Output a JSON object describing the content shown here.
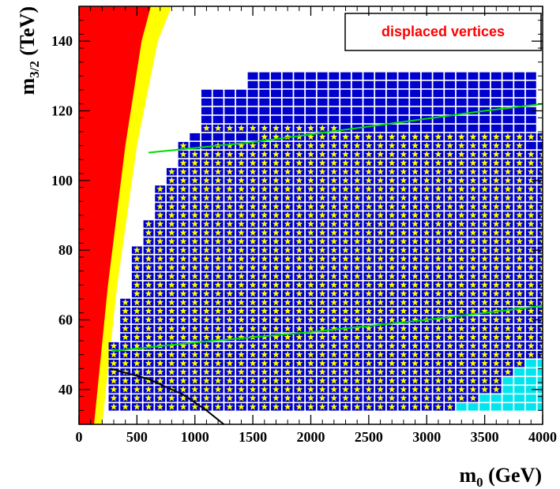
{
  "chart_data": {
    "type": "scatter",
    "title": "",
    "xlabel": {
      "main": "m",
      "sub": "0",
      "unit": " (GeV)"
    },
    "ylabel": {
      "main": "m",
      "sub": "3/2",
      "unit": " (TeV)"
    },
    "xlim": [
      0,
      4000
    ],
    "ylim": [
      30,
      150
    ],
    "x_ticks": [
      0,
      500,
      1000,
      1500,
      2000,
      2500,
      3000,
      3500,
      4000
    ],
    "y_ticks": [
      40,
      60,
      80,
      100,
      120,
      140
    ],
    "grid": false,
    "legend": {
      "text": "displaced vertices",
      "placement": "top-right",
      "color": "#ff0000"
    },
    "colors": {
      "excluded": "#ff0000",
      "boundary": "#ffff00",
      "blue_square": "#0000cc",
      "star": "#ffff00",
      "cyan_square": "#00e5ee",
      "green_contour": "#00dd00",
      "black_contour": "#000000"
    },
    "grid_spacing": {
      "dx": 100,
      "dy": 2.5
    },
    "rows": [
      {
        "y": 35.0,
        "xmin": 300,
        "xmax": 4000,
        "star_max": 3200,
        "cyan_min": 3300
      },
      {
        "y": 37.5,
        "xmin": 300,
        "xmax": 4000,
        "star_max": 3400,
        "cyan_min": 3500
      },
      {
        "y": 40.0,
        "xmin": 300,
        "xmax": 4000,
        "star_max": 3600,
        "cyan_min": 3700
      },
      {
        "y": 42.5,
        "xmin": 300,
        "xmax": 4000,
        "star_max": 3600,
        "cyan_min": 3700
      },
      {
        "y": 45.0,
        "xmin": 300,
        "xmax": 4000,
        "star_max": 3700,
        "cyan_min": 3800
      },
      {
        "y": 47.5,
        "xmin": 300,
        "xmax": 4000,
        "star_max": 3800,
        "cyan_min": 3900
      },
      {
        "y": 50.0,
        "xmin": 300,
        "xmax": 4000,
        "star_max": 4000
      },
      {
        "y": 52.5,
        "xmin": 300,
        "xmax": 4000,
        "star_max": 4000
      },
      {
        "y": 55.0,
        "xmin": 400,
        "xmax": 4000,
        "star_max": 4000
      },
      {
        "y": 57.5,
        "xmin": 400,
        "xmax": 4000,
        "star_max": 4000
      },
      {
        "y": 60.0,
        "xmin": 400,
        "xmax": 4000,
        "star_max": 4000
      },
      {
        "y": 62.5,
        "xmin": 400,
        "xmax": 4000,
        "star_max": 4000
      },
      {
        "y": 65.0,
        "xmin": 400,
        "xmax": 4000,
        "star_max": 4000
      },
      {
        "y": 67.5,
        "xmin": 500,
        "xmax": 4000,
        "star_max": 4000
      },
      {
        "y": 70.0,
        "xmin": 500,
        "xmax": 4000,
        "star_max": 4000
      },
      {
        "y": 72.5,
        "xmin": 500,
        "xmax": 4000,
        "star_max": 4000
      },
      {
        "y": 75.0,
        "xmin": 500,
        "xmax": 4000,
        "star_max": 4000
      },
      {
        "y": 77.5,
        "xmin": 500,
        "xmax": 4000,
        "star_max": 4000
      },
      {
        "y": 80.0,
        "xmin": 500,
        "xmax": 4000,
        "star_max": 4000
      },
      {
        "y": 82.5,
        "xmin": 600,
        "xmax": 4000,
        "star_max": 4000
      },
      {
        "y": 85.0,
        "xmin": 600,
        "xmax": 4000,
        "star_max": 4000
      },
      {
        "y": 87.5,
        "xmin": 600,
        "xmax": 4000,
        "star_max": 4000
      },
      {
        "y": 90.0,
        "xmin": 700,
        "xmax": 4000,
        "star_max": 4000
      },
      {
        "y": 92.5,
        "xmin": 700,
        "xmax": 4000,
        "star_max": 4000
      },
      {
        "y": 95.0,
        "xmin": 700,
        "xmax": 4000,
        "star_max": 4000
      },
      {
        "y": 97.5,
        "xmin": 700,
        "xmax": 4000,
        "star_max": 4000
      },
      {
        "y": 100.0,
        "xmin": 800,
        "xmax": 4000,
        "star_max": 4000
      },
      {
        "y": 102.5,
        "xmin": 800,
        "xmax": 4000,
        "star_max": 4000
      },
      {
        "y": 105.0,
        "xmin": 900,
        "xmax": 4000,
        "star_max": 4000
      },
      {
        "y": 107.5,
        "xmin": 900,
        "xmax": 4000,
        "star_max": 4000
      },
      {
        "y": 110.0,
        "xmin": 900,
        "xmax": 4000,
        "star_max": 4000,
        "blue_only": [
          1000,
          1100,
          3900,
          4000
        ]
      },
      {
        "y": 112.5,
        "xmin": 1000,
        "xmax": 4000,
        "star_max": 4000,
        "blue_only": [
          1000,
          1100,
          1200,
          1300,
          1400,
          1500
        ]
      },
      {
        "y": 115.0,
        "xmin": 1100,
        "xmax": 3900,
        "star_max": 2200
      },
      {
        "y": 117.5,
        "xmin": 1100,
        "xmax": 3900,
        "star_max": 0
      },
      {
        "y": 120.0,
        "xmin": 1100,
        "xmax": 3900,
        "star_max": 0
      },
      {
        "y": 122.5,
        "xmin": 1100,
        "xmax": 3900,
        "star_max": 0
      },
      {
        "y": 125.0,
        "xmin": 1100,
        "xmax": 3900,
        "star_max": 0
      },
      {
        "y": 127.5,
        "xmin": 1500,
        "xmax": 3900,
        "star_max": 0
      },
      {
        "y": 130.0,
        "xmin": 1500,
        "xmax": 3900,
        "star_max": 0
      }
    ],
    "red_region_right_edge": [
      [
        130,
        30
      ],
      [
        250,
        70
      ],
      [
        400,
        110
      ],
      [
        540,
        140
      ],
      [
        620,
        150
      ]
    ],
    "yellow_region_right_edge": [
      [
        200,
        30
      ],
      [
        330,
        70
      ],
      [
        500,
        110
      ],
      [
        680,
        140
      ],
      [
        800,
        150
      ]
    ],
    "green_contours": [
      {
        "x": [
          280,
          1000,
          2000,
          3000,
          4000
        ],
        "y": [
          51,
          53.5,
          56.5,
          60,
          64
        ]
      },
      {
        "x": [
          600,
          1500,
          2500,
          3500,
          4000
        ],
        "y": [
          108,
          111,
          115.5,
          120,
          122
        ]
      }
    ],
    "black_contour": {
      "x": [
        270,
        600,
        900,
        1100,
        1250
      ],
      "y": [
        46,
        43,
        38.5,
        34,
        30
      ]
    }
  }
}
